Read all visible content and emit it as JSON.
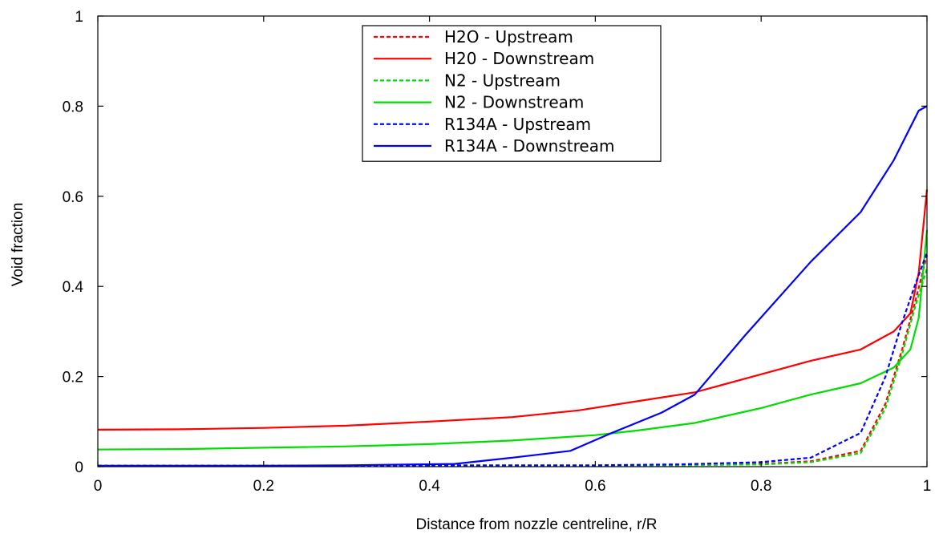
{
  "chart_data": {
    "type": "line",
    "title": "",
    "xlabel": "Distance from nozzle centreline, r/R",
    "ylabel": "Void fraction",
    "xlim": [
      0,
      1
    ],
    "ylim": [
      0,
      1
    ],
    "xticks": [
      0,
      0.2,
      0.4,
      0.6,
      0.8,
      1
    ],
    "xtick_labels": [
      "0",
      "0.2",
      "0.4",
      "0.6",
      "0.8",
      "1"
    ],
    "yticks": [
      0,
      0.2,
      0.4,
      0.6,
      0.8,
      1
    ],
    "ytick_labels": [
      "0",
      "0.2",
      "0.4",
      "0.6",
      "0.8",
      "1"
    ],
    "grid": false,
    "legend_position": "top-center",
    "series": [
      {
        "name": "H2O - Upstream",
        "color": "#ff0000",
        "style": "dashed",
        "points": [
          [
            0,
            0.002
          ],
          [
            0.2,
            0.002
          ],
          [
            0.4,
            0.002
          ],
          [
            0.6,
            0.002
          ],
          [
            0.7,
            0.003
          ],
          [
            0.8,
            0.006
          ],
          [
            0.86,
            0.012
          ],
          [
            0.92,
            0.035
          ],
          [
            0.95,
            0.14
          ],
          [
            0.97,
            0.26
          ],
          [
            0.985,
            0.36
          ],
          [
            1.0,
            0.47
          ]
        ]
      },
      {
        "name": "H20 - Downstream",
        "color": "#ff0000",
        "style": "solid",
        "points": [
          [
            0,
            0.082
          ],
          [
            0.1,
            0.083
          ],
          [
            0.2,
            0.086
          ],
          [
            0.3,
            0.091
          ],
          [
            0.4,
            0.1
          ],
          [
            0.5,
            0.11
          ],
          [
            0.58,
            0.125
          ],
          [
            0.65,
            0.145
          ],
          [
            0.72,
            0.165
          ],
          [
            0.8,
            0.205
          ],
          [
            0.86,
            0.235
          ],
          [
            0.92,
            0.26
          ],
          [
            0.96,
            0.3
          ],
          [
            0.98,
            0.34
          ],
          [
            0.99,
            0.43
          ],
          [
            1.0,
            0.615
          ]
        ]
      },
      {
        "name": "N2 - Upstream",
        "color": "#00dd00",
        "style": "dashed",
        "points": [
          [
            0,
            0.002
          ],
          [
            0.2,
            0.002
          ],
          [
            0.4,
            0.002
          ],
          [
            0.6,
            0.002
          ],
          [
            0.7,
            0.003
          ],
          [
            0.8,
            0.005
          ],
          [
            0.86,
            0.01
          ],
          [
            0.92,
            0.03
          ],
          [
            0.95,
            0.13
          ],
          [
            0.97,
            0.25
          ],
          [
            0.985,
            0.35
          ],
          [
            1.0,
            0.44
          ]
        ]
      },
      {
        "name": "N2 - Downstream",
        "color": "#00dd00",
        "style": "solid",
        "points": [
          [
            0,
            0.038
          ],
          [
            0.1,
            0.039
          ],
          [
            0.2,
            0.042
          ],
          [
            0.3,
            0.045
          ],
          [
            0.4,
            0.05
          ],
          [
            0.5,
            0.058
          ],
          [
            0.6,
            0.07
          ],
          [
            0.65,
            0.08
          ],
          [
            0.72,
            0.097
          ],
          [
            0.8,
            0.13
          ],
          [
            0.86,
            0.16
          ],
          [
            0.92,
            0.185
          ],
          [
            0.96,
            0.22
          ],
          [
            0.98,
            0.26
          ],
          [
            0.99,
            0.33
          ],
          [
            1.0,
            0.525
          ]
        ]
      },
      {
        "name": "R134A - Upstream",
        "color": "#0000ff",
        "style": "dashed",
        "points": [
          [
            0,
            0.002
          ],
          [
            0.2,
            0.002
          ],
          [
            0.4,
            0.003
          ],
          [
            0.6,
            0.003
          ],
          [
            0.7,
            0.005
          ],
          [
            0.8,
            0.01
          ],
          [
            0.86,
            0.02
          ],
          [
            0.92,
            0.075
          ],
          [
            0.95,
            0.2
          ],
          [
            0.97,
            0.32
          ],
          [
            0.985,
            0.4
          ],
          [
            1.0,
            0.475
          ]
        ]
      },
      {
        "name": "R134A - Downstream",
        "color": "#0000ff",
        "style": "solid",
        "points": [
          [
            0,
            0.002
          ],
          [
            0.2,
            0.002
          ],
          [
            0.3,
            0.003
          ],
          [
            0.43,
            0.006
          ],
          [
            0.5,
            0.02
          ],
          [
            0.57,
            0.035
          ],
          [
            0.62,
            0.075
          ],
          [
            0.68,
            0.12
          ],
          [
            0.72,
            0.16
          ],
          [
            0.78,
            0.29
          ],
          [
            0.86,
            0.455
          ],
          [
            0.92,
            0.565
          ],
          [
            0.96,
            0.68
          ],
          [
            0.99,
            0.79
          ],
          [
            1.0,
            0.8
          ]
        ]
      }
    ]
  }
}
